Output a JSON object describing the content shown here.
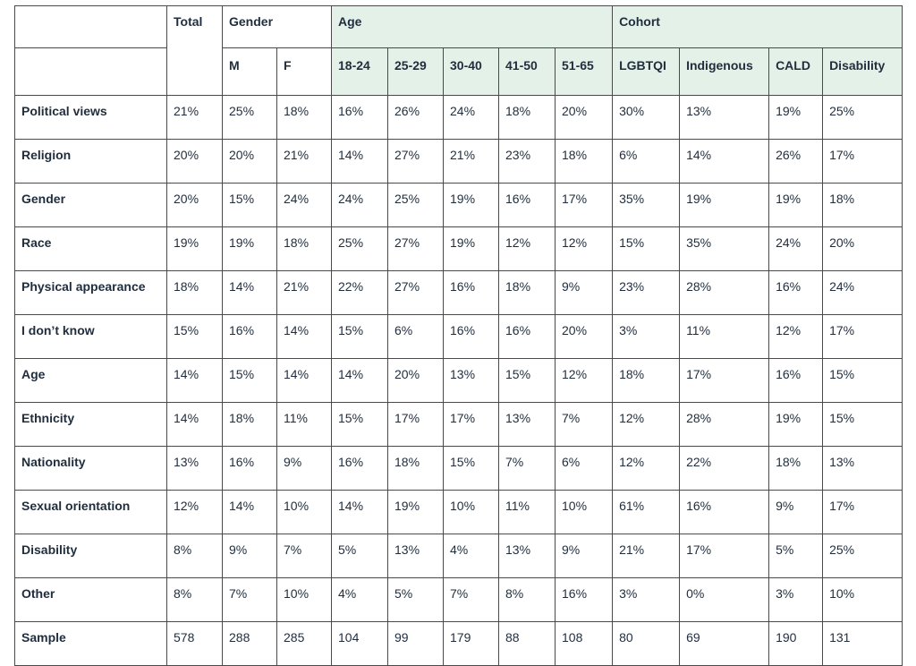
{
  "headers": {
    "total": "Total",
    "gender_group": "Gender",
    "age_group": "Age",
    "cohort_group": "Cohort",
    "subcolumns": [
      "M",
      "F",
      "18-24",
      "25-29",
      "30-40",
      "41-50",
      "51-65",
      "LGBTQI",
      "Indigenous",
      "CALD",
      "Disability"
    ]
  },
  "rows": [
    {
      "label": "Political views",
      "values": [
        "21%",
        "25%",
        "18%",
        "16%",
        "26%",
        "24%",
        "18%",
        "20%",
        "30%",
        "13%",
        "19%",
        "25%"
      ]
    },
    {
      "label": "Religion",
      "values": [
        "20%",
        "20%",
        "21%",
        "14%",
        "27%",
        "21%",
        "23%",
        "18%",
        "6%",
        "14%",
        "26%",
        "17%"
      ]
    },
    {
      "label": "Gender",
      "values": [
        "20%",
        "15%",
        "24%",
        "24%",
        "25%",
        "19%",
        "16%",
        "17%",
        "35%",
        "19%",
        "19%",
        "18%"
      ]
    },
    {
      "label": "Race",
      "values": [
        "19%",
        "19%",
        "18%",
        "25%",
        "27%",
        "19%",
        "12%",
        "12%",
        "15%",
        "35%",
        "24%",
        "20%"
      ]
    },
    {
      "label": "Physical appearance",
      "values": [
        "18%",
        "14%",
        "21%",
        "22%",
        "27%",
        "16%",
        "18%",
        "9%",
        "23%",
        "28%",
        "16%",
        "24%"
      ]
    },
    {
      "label": "I don’t know",
      "values": [
        "15%",
        "16%",
        "14%",
        "15%",
        "6%",
        "16%",
        "16%",
        "20%",
        "3%",
        "11%",
        "12%",
        "17%"
      ]
    },
    {
      "label": "Age",
      "values": [
        "14%",
        "15%",
        "14%",
        "14%",
        "20%",
        "13%",
        "15%",
        "12%",
        "18%",
        "17%",
        "16%",
        "15%"
      ]
    },
    {
      "label": "Ethnicity",
      "values": [
        "14%",
        "18%",
        "11%",
        "15%",
        "17%",
        "17%",
        "13%",
        "7%",
        "12%",
        "28%",
        "19%",
        "15%"
      ]
    },
    {
      "label": "Nationality",
      "values": [
        "13%",
        "16%",
        "9%",
        "16%",
        "18%",
        "15%",
        "7%",
        "6%",
        "12%",
        "22%",
        "18%",
        "13%"
      ]
    },
    {
      "label": "Sexual orientation",
      "values": [
        "12%",
        "14%",
        "10%",
        "14%",
        "19%",
        "10%",
        "11%",
        "10%",
        "61%",
        "16%",
        "9%",
        "17%"
      ]
    },
    {
      "label": "Disability",
      "values": [
        "8%",
        "9%",
        "7%",
        "5%",
        "13%",
        "4%",
        "13%",
        "9%",
        "21%",
        "17%",
        "5%",
        "25%"
      ]
    },
    {
      "label": "Other",
      "values": [
        "8%",
        "7%",
        "10%",
        "4%",
        "5%",
        "7%",
        "8%",
        "16%",
        "3%",
        "0%",
        "3%",
        "10%"
      ]
    },
    {
      "label": "Sample",
      "values": [
        "578",
        "288",
        "285",
        "104",
        "99",
        "179",
        "88",
        "108",
        "80",
        "69",
        "190",
        "131"
      ]
    }
  ],
  "colors": {
    "group_header_shade": "#e4f1e8",
    "border": "#4a4a4a",
    "text": "#1f2d3d"
  }
}
